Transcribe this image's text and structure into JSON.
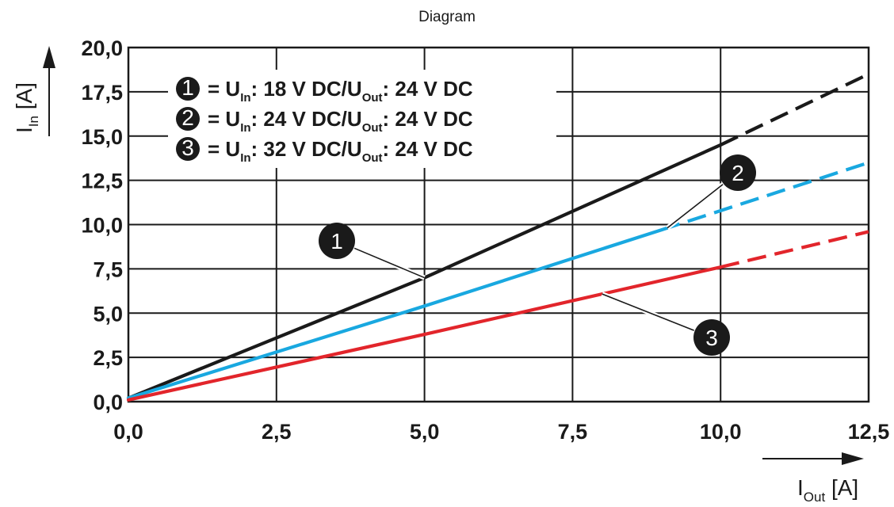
{
  "chart_data": {
    "type": "line",
    "title": "Diagram",
    "xlabel": {
      "main": "I",
      "sub": "Out",
      "unit": "[A]"
    },
    "ylabel": {
      "main": "I",
      "sub": "In",
      "unit": "[A]"
    },
    "xlim": [
      0,
      12.5
    ],
    "ylim": [
      0,
      20
    ],
    "xticks": [
      0,
      2.5,
      5,
      7.5,
      10,
      12.5
    ],
    "yticks": [
      0,
      2.5,
      5,
      7.5,
      10,
      12.5,
      15,
      17.5,
      20
    ],
    "xtick_labels": [
      "0,0",
      "2,5",
      "5,0",
      "7,5",
      "10,0",
      "12,5"
    ],
    "ytick_labels": [
      "0,0",
      "2,5",
      "5,0",
      "7,5",
      "10,0",
      "12,5",
      "15,0",
      "17,5",
      "20,0"
    ],
    "grid": true,
    "series": [
      {
        "marker": "1",
        "color": "#1a1a1a",
        "legend": {
          "a": "= U",
          "a_sub": "In",
          "b": ": 18 V DC/U",
          "b_sub": "Out",
          "c": ": 24 V DC"
        },
        "solid": [
          [
            0,
            0.2
          ],
          [
            5,
            7.0
          ],
          [
            10,
            14.5
          ]
        ],
        "dashed": [
          [
            10,
            14.5
          ],
          [
            12.5,
            18.5
          ]
        ],
        "legend_style": "filled"
      },
      {
        "marker": "2",
        "color": "#19a8e0",
        "legend": {
          "a": "= U",
          "a_sub": "In",
          "b": ": 24 V DC/U",
          "b_sub": "Out",
          "c": ": 24 V DC"
        },
        "solid": [
          [
            0,
            0.2
          ],
          [
            5,
            5.4
          ],
          [
            9,
            9.7
          ]
        ],
        "dashed": [
          [
            9,
            9.7
          ],
          [
            12.5,
            13.5
          ]
        ],
        "legend_style": "filled"
      },
      {
        "marker": "3",
        "color": "#e2252b",
        "legend": {
          "a": "= U",
          "a_sub": "In",
          "b": ": 32 V DC/U",
          "b_sub": "Out",
          "c": ": 24 V DC"
        },
        "solid": [
          [
            0,
            0.1
          ],
          [
            5,
            3.8
          ],
          [
            10,
            7.6
          ]
        ],
        "dashed": [
          [
            10,
            7.6
          ],
          [
            12.5,
            9.6
          ]
        ],
        "legend_style": "filled"
      }
    ],
    "annotations": [
      {
        "label": "1",
        "at": [
          7.6,
          2.1
        ],
        "points_to": [
          9.8,
          -6.9
        ]
      },
      {
        "label": "2",
        "at": [
          10.05,
          1.9
        ],
        "points_to": [
          9.0,
          -9.6
        ]
      },
      {
        "label": "3",
        "at": [
          -10.2,
          -4.6
        ],
        "points_to": [
          8.0,
          -6.1
        ]
      }
    ]
  }
}
